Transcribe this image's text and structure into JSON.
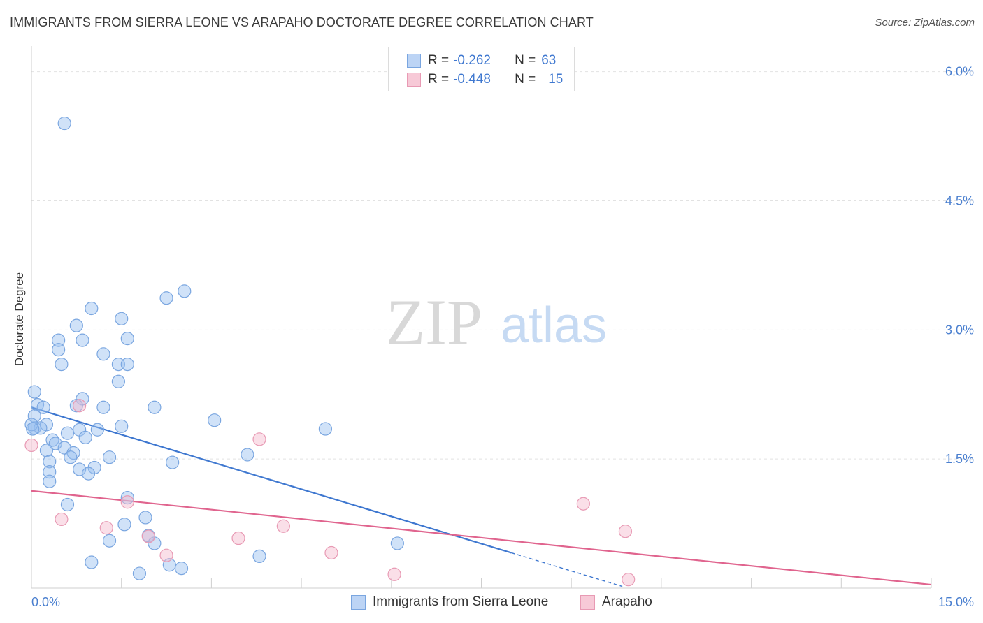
{
  "header": {
    "title": "IMMIGRANTS FROM SIERRA LEONE VS ARAPAHO DOCTORATE DEGREE CORRELATION CHART",
    "source": "Source: ZipAtlas.com"
  },
  "watermark": {
    "zip": "ZIP",
    "atlas": "atlas"
  },
  "legend": {
    "rows": [
      {
        "r_label": "R = ",
        "r_value": "-0.262",
        "n_label": "N = ",
        "n_value": "63",
        "color": "#7aa6e0",
        "fill": "#bcd4f5"
      },
      {
        "r_label": "R = ",
        "r_value": "-0.448",
        "n_label": "N = ",
        "n_value": "15",
        "color": "#e89ab4",
        "fill": "#f7c9d7"
      }
    ]
  },
  "bottom_legend": [
    {
      "label": "Immigrants from Sierra Leone",
      "color": "#7aa6e0",
      "fill": "#bcd4f5"
    },
    {
      "label": "Arapaho",
      "color": "#e89ab4",
      "fill": "#f7c9d7"
    }
  ],
  "chart_data": {
    "type": "scatter",
    "ylabel": "Doctorate Degree",
    "xlim": [
      0,
      15
    ],
    "ylim": [
      0,
      6.2
    ],
    "x_tick_labels": [
      {
        "value": 0,
        "label": "0.0%"
      },
      {
        "value": 15,
        "label": "15.0%"
      }
    ],
    "y_tick_labels": [
      {
        "value": 6.0,
        "label": "6.0%"
      },
      {
        "value": 4.5,
        "label": "4.5%"
      },
      {
        "value": 3.0,
        "label": "3.0%"
      },
      {
        "value": 1.5,
        "label": "1.5%"
      }
    ],
    "grid": true,
    "series": [
      {
        "name": "Immigrants from Sierra Leone",
        "color": "#3f78d0",
        "fill": "rgba(150,190,240,0.45)",
        "stroke": "#7aa6e0",
        "points": [
          [
            0.55,
            5.4
          ],
          [
            2.55,
            3.45
          ],
          [
            2.25,
            3.37
          ],
          [
            1.0,
            3.25
          ],
          [
            1.5,
            3.13
          ],
          [
            0.75,
            3.05
          ],
          [
            0.45,
            2.88
          ],
          [
            0.85,
            2.88
          ],
          [
            1.6,
            2.9
          ],
          [
            0.45,
            2.77
          ],
          [
            1.2,
            2.72
          ],
          [
            0.5,
            2.6
          ],
          [
            1.45,
            2.6
          ],
          [
            1.6,
            2.6
          ],
          [
            1.45,
            2.4
          ],
          [
            0.05,
            2.28
          ],
          [
            0.85,
            2.2
          ],
          [
            0.1,
            2.13
          ],
          [
            0.2,
            2.1
          ],
          [
            0.75,
            2.12
          ],
          [
            1.2,
            2.1
          ],
          [
            2.05,
            2.1
          ],
          [
            0.05,
            2.0
          ],
          [
            0.05,
            1.86
          ],
          [
            0.25,
            1.9
          ],
          [
            0.15,
            1.86
          ],
          [
            1.5,
            1.88
          ],
          [
            3.05,
            1.95
          ],
          [
            4.9,
            1.85
          ],
          [
            1.1,
            1.84
          ],
          [
            0.8,
            1.84
          ],
          [
            0.6,
            1.8
          ],
          [
            0.9,
            1.75
          ],
          [
            0.35,
            1.72
          ],
          [
            0.4,
            1.68
          ],
          [
            0.55,
            1.63
          ],
          [
            0.25,
            1.6
          ],
          [
            0.7,
            1.57
          ],
          [
            0.65,
            1.52
          ],
          [
            1.3,
            1.52
          ],
          [
            3.6,
            1.55
          ],
          [
            0.3,
            1.47
          ],
          [
            2.35,
            1.46
          ],
          [
            1.05,
            1.4
          ],
          [
            0.8,
            1.38
          ],
          [
            0.3,
            1.35
          ],
          [
            0.95,
            1.33
          ],
          [
            0.3,
            1.24
          ],
          [
            1.6,
            1.05
          ],
          [
            0.6,
            0.97
          ],
          [
            1.9,
            0.82
          ],
          [
            1.55,
            0.74
          ],
          [
            1.95,
            0.61
          ],
          [
            1.3,
            0.55
          ],
          [
            2.05,
            0.52
          ],
          [
            6.1,
            0.52
          ],
          [
            3.8,
            0.37
          ],
          [
            1.0,
            0.3
          ],
          [
            2.3,
            0.27
          ],
          [
            2.5,
            0.23
          ],
          [
            1.8,
            0.17
          ],
          [
            0.0,
            1.9
          ],
          [
            0.02,
            1.85
          ]
        ],
        "trend": {
          "x": [
            0.0,
            8.0
          ],
          "y": [
            2.1,
            0.41
          ],
          "dash_to": [
            9.85,
            0.02
          ]
        }
      },
      {
        "name": "Arapaho",
        "color": "#e0648e",
        "fill": "rgba(245,185,205,0.45)",
        "stroke": "#e89ab4",
        "points": [
          [
            0.0,
            1.66
          ],
          [
            0.8,
            2.12
          ],
          [
            3.8,
            1.73
          ],
          [
            0.5,
            0.8
          ],
          [
            1.25,
            0.7
          ],
          [
            1.6,
            1.0
          ],
          [
            1.95,
            0.6
          ],
          [
            2.25,
            0.38
          ],
          [
            3.45,
            0.58
          ],
          [
            4.2,
            0.72
          ],
          [
            5.0,
            0.41
          ],
          [
            6.05,
            0.16
          ],
          [
            9.2,
            0.98
          ],
          [
            9.9,
            0.66
          ],
          [
            9.95,
            0.1
          ]
        ],
        "trend": {
          "x": [
            0.0,
            15.0
          ],
          "y": [
            1.13,
            0.04
          ]
        }
      }
    ]
  }
}
